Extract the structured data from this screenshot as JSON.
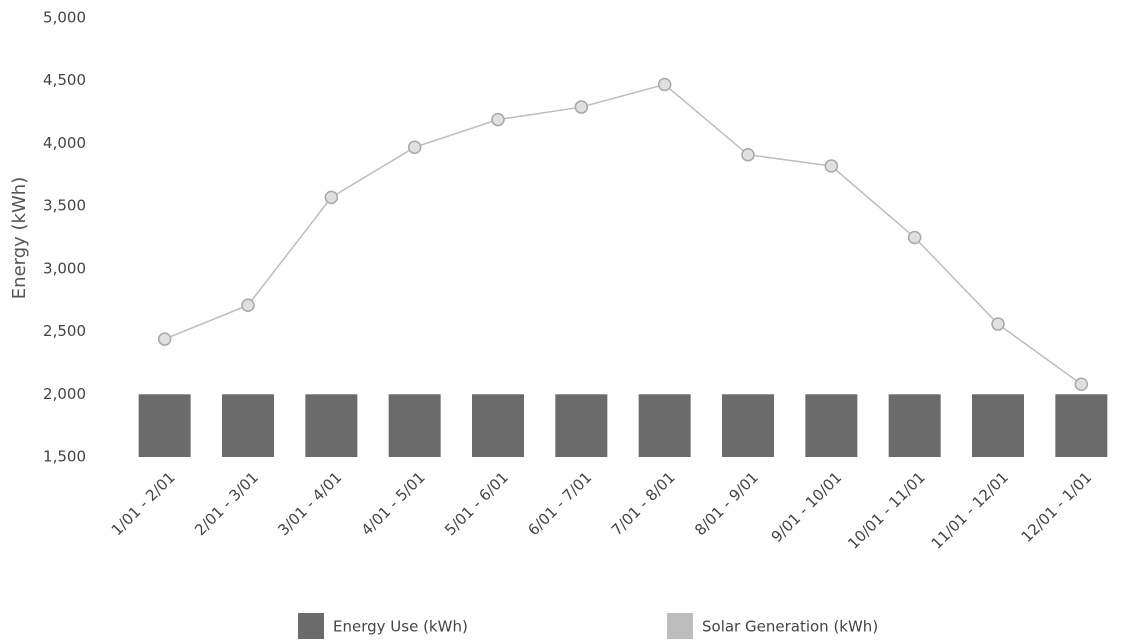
{
  "chart_data": {
    "type": "combo",
    "y_label": "Energy (kWh)",
    "categories": [
      "1/01 - 2/01",
      "2/01 - 3/01",
      "3/01 - 4/01",
      "4/01 - 5/01",
      "5/01 - 6/01",
      "6/01 - 7/01",
      "7/01 - 8/01",
      "8/01 - 9/01",
      "9/01 - 10/01",
      "10/01 - 11/01",
      "11/01 - 12/01",
      "12/01 - 1/01"
    ],
    "series": [
      {
        "name": "Energy Use (kWh)",
        "type": "bar",
        "color": "#6b6b6b",
        "values": [
          2000,
          2000,
          2000,
          2000,
          2000,
          2000,
          2000,
          2000,
          2000,
          2000,
          2000,
          2000
        ]
      },
      {
        "name": "Solar Generation (kWh)",
        "type": "line",
        "color": "#bdbdbd",
        "values": [
          2440,
          2710,
          3570,
          3970,
          4190,
          4290,
          4470,
          3910,
          3820,
          3250,
          2560,
          2080
        ]
      }
    ],
    "ylim": [
      1500,
      5000
    ],
    "yticks": [
      {
        "value": 1500,
        "label": "1,500"
      },
      {
        "value": 2000,
        "label": "2,000"
      },
      {
        "value": 2500,
        "label": "2,500"
      },
      {
        "value": 3000,
        "label": "3,000"
      },
      {
        "value": 3500,
        "label": "3,500"
      },
      {
        "value": 4000,
        "label": "4,000"
      },
      {
        "value": 4500,
        "label": "4,500"
      },
      {
        "value": 5000,
        "label": "5,000"
      }
    ],
    "grid": false,
    "legend": "bottom"
  }
}
